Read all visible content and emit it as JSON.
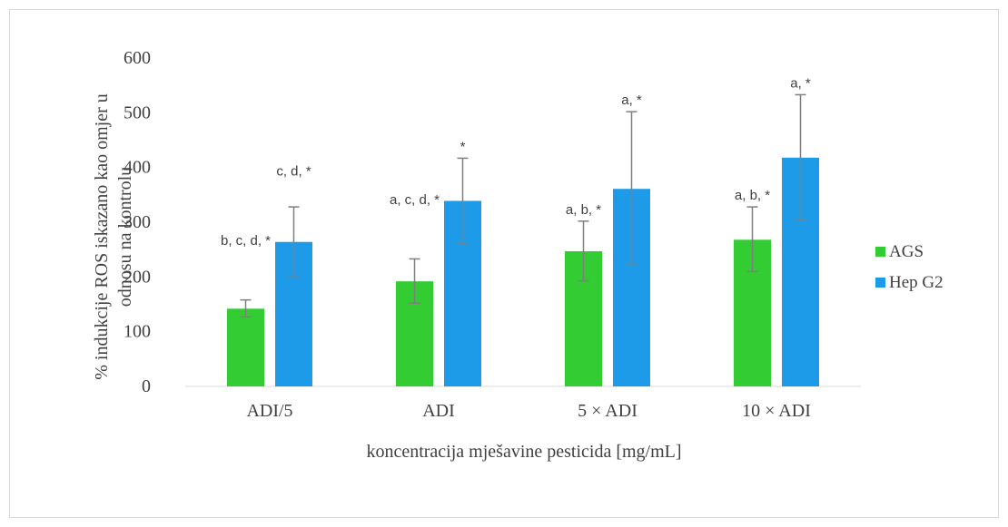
{
  "chart_data": {
    "type": "bar",
    "title": "",
    "xlabel": "koncentracija mješavine pesticida [mg/mL]",
    "ylabel_lines": [
      "% indukcije ROS iskazano kao omjer u",
      "odnosu na kontrolu"
    ],
    "ylim": [
      0,
      600
    ],
    "yticks": [
      0,
      100,
      200,
      300,
      400,
      500,
      600
    ],
    "grid": false,
    "legend_position": "right",
    "categories": [
      "ADI/5",
      "ADI",
      "5 × ADI",
      "10 × ADI"
    ],
    "series": [
      {
        "name": "AGS",
        "color": "#33cc33",
        "values": [
          142,
          192,
          247,
          268
        ],
        "error_low": [
          127,
          152,
          193,
          210
        ],
        "error_high": [
          158,
          233,
          302,
          328
        ],
        "annotations": [
          "b, c, d, *",
          "a, c, d, *",
          "a, b, *",
          "a, b, *"
        ],
        "annotation_y": [
          245,
          320,
          302,
          328
        ]
      },
      {
        "name": "Hep G2",
        "color": "#1e9be8",
        "values": [
          264,
          339,
          361,
          418
        ],
        "error_low": [
          200,
          262,
          223,
          305
        ],
        "error_high": [
          328,
          417,
          502,
          533
        ],
        "annotations": [
          "c, d, *",
          "*",
          "a, *",
          "a, *"
        ],
        "annotation_y": [
          372,
          417,
          502,
          533
        ]
      }
    ]
  }
}
